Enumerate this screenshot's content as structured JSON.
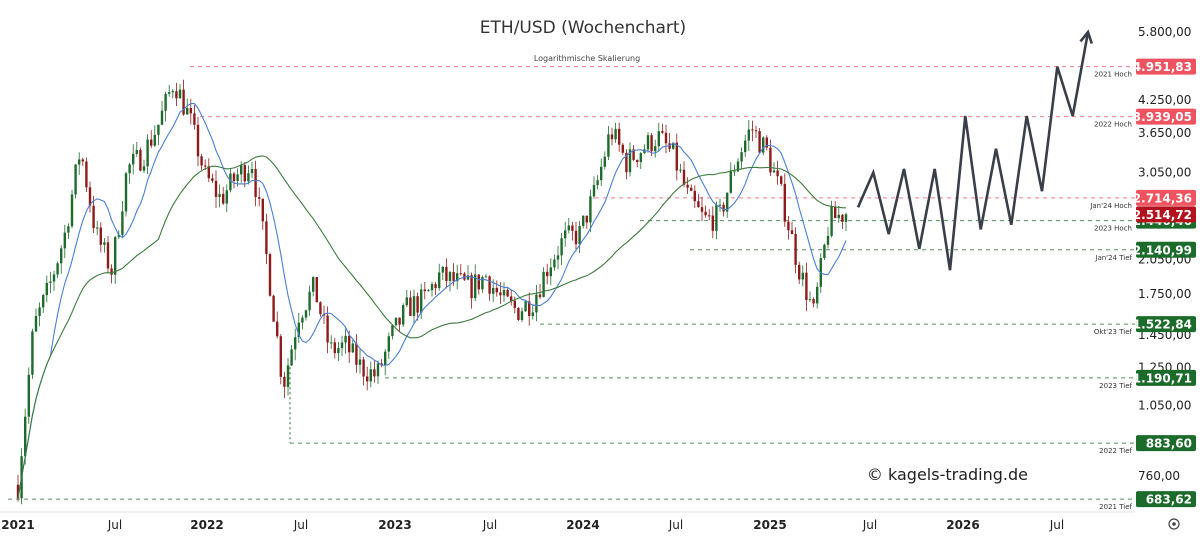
{
  "chart_data": {
    "type": "candlestick",
    "title": "ETH/USD (Wochenchart)",
    "subtitle": "Logarithmische Skalierung",
    "watermark": "© kagels-trading.de",
    "scale": "log",
    "x_ticks": [
      "2021",
      "Jul",
      "2022",
      "Jul",
      "2023",
      "Jul",
      "2024",
      "Jul",
      "2025",
      "Jul",
      "2026",
      "Jul"
    ],
    "y_ticks": [
      "5.800,00",
      "4.250,00",
      "3.650,00",
      "3.050,00",
      "2.050,00",
      "1.750,00",
      "1.450,00",
      "1.250,00",
      "1.050,00",
      "760,00"
    ],
    "y_tick_values": [
      5800,
      4250,
      3650,
      3050,
      2050,
      1750,
      1450,
      1250,
      1050,
      760
    ],
    "levels": [
      {
        "value": 4951.83,
        "value_label": "4.951,83",
        "label": "2021 Hoch",
        "color": "#ef5360"
      },
      {
        "value": 3939.05,
        "value_label": "3.939,05",
        "label": "2022 Hoch",
        "color": "#ef5360"
      },
      {
        "value": 2714.36,
        "value_label": "2.714,36",
        "label": "Jan'24 Hoch",
        "color": "#ef5360"
      },
      {
        "value": 2446.46,
        "value_label": "2.446,46",
        "label": "2023 Hoch",
        "color": "#1b6b2a"
      },
      {
        "value": 2140.99,
        "value_label": "2.140,99",
        "label": "Jan'24 Tief",
        "color": "#1b6b2a"
      },
      {
        "value": 1522.84,
        "value_label": "1.522,84",
        "label": "Okt'23 Tief",
        "color": "#1b6b2a"
      },
      {
        "value": 1190.71,
        "value_label": "1.190,71",
        "label": "2023 Tief",
        "color": "#1b6b2a"
      },
      {
        "value": 883.6,
        "value_label": "883,60",
        "label": "2022 Tief",
        "color": "#1b6b2a"
      },
      {
        "value": 683.62,
        "value_label": "683,62",
        "label": "2021 Tief",
        "color": "#1b6b2a"
      }
    ],
    "current_price": {
      "value": 2514.72,
      "value_label": "2.514,72",
      "color": "#b3121d"
    },
    "price_path": [
      [
        "2021-01",
        730
      ],
      [
        "2021-02",
        1500
      ],
      [
        "2021-03",
        1800
      ],
      [
        "2021-04",
        2300
      ],
      [
        "2021-05",
        3400
      ],
      [
        "2021-06",
        2300
      ],
      [
        "2021-07",
        1950
      ],
      [
        "2021-08",
        3100
      ],
      [
        "2021-09",
        3300
      ],
      [
        "2021-10",
        3800
      ],
      [
        "2021-11",
        4650
      ],
      [
        "2021-12",
        3900
      ],
      [
        "2022-01",
        3000
      ],
      [
        "2022-02",
        2700
      ],
      [
        "2022-03",
        3000
      ],
      [
        "2022-04",
        3200
      ],
      [
        "2022-05",
        2000
      ],
      [
        "2022-06",
        1150
      ],
      [
        "2022-07",
        1600
      ],
      [
        "2022-08",
        1800
      ],
      [
        "2022-09",
        1350
      ],
      [
        "2022-10",
        1380
      ],
      [
        "2022-11",
        1250
      ],
      [
        "2022-12",
        1200
      ],
      [
        "2023-01",
        1450
      ],
      [
        "2023-02",
        1650
      ],
      [
        "2023-03",
        1700
      ],
      [
        "2023-04",
        1900
      ],
      [
        "2023-05",
        1850
      ],
      [
        "2023-06",
        1800
      ],
      [
        "2023-07",
        1900
      ],
      [
        "2023-08",
        1700
      ],
      [
        "2023-09",
        1620
      ],
      [
        "2023-10",
        1700
      ],
      [
        "2023-11",
        2000
      ],
      [
        "2023-12",
        2250
      ],
      [
        "2024-01",
        2300
      ],
      [
        "2024-02",
        2800
      ],
      [
        "2024-03",
        3700
      ],
      [
        "2024-04",
        3200
      ],
      [
        "2024-05",
        3400
      ],
      [
        "2024-06",
        3600
      ],
      [
        "2024-07",
        3300
      ],
      [
        "2024-08",
        2700
      ],
      [
        "2024-09",
        2450
      ],
      [
        "2024-10",
        2500
      ],
      [
        "2024-11",
        3200
      ],
      [
        "2024-12",
        3750
      ],
      [
        "2025-01",
        3350
      ],
      [
        "2025-02",
        2700
      ],
      [
        "2025-03",
        2000
      ],
      [
        "2025-04",
        1600
      ],
      [
        "2025-05",
        2450
      ],
      [
        "2025-06",
        2550
      ]
    ],
    "projection": [
      2600,
      3050,
      2300,
      3100,
      2150,
      3100,
      1950,
      3950,
      2350,
      3400,
      2400,
      3950,
      2800,
      4950,
      3950,
      5800
    ]
  }
}
